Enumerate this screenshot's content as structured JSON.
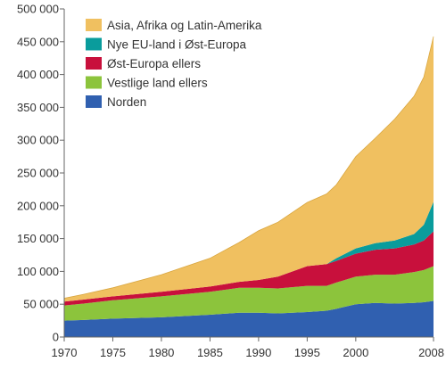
{
  "chart_data": {
    "type": "area",
    "stacked": true,
    "title": "",
    "xlabel": "",
    "ylabel": "",
    "xlim": [
      1970,
      2008
    ],
    "ylim": [
      0,
      500000
    ],
    "grid": false,
    "legend_position": "top-left",
    "x_ticks": [
      1970,
      1975,
      1980,
      1985,
      1990,
      1995,
      2000,
      2008
    ],
    "x_tick_labels": [
      "1970",
      "1975",
      "1980",
      "1985",
      "1990",
      "1995",
      "2000",
      "2008"
    ],
    "y_ticks": [
      0,
      50000,
      100000,
      150000,
      200000,
      250000,
      300000,
      350000,
      400000,
      450000,
      500000
    ],
    "y_tick_labels": [
      "0",
      "50 000",
      "100 000",
      "150 000",
      "200 000",
      "250 000",
      "300 000",
      "350 000",
      "400 000",
      "450 000",
      "500 000"
    ],
    "x": [
      1970,
      1972,
      1975,
      1980,
      1985,
      1988,
      1990,
      1992,
      1995,
      1997,
      1998,
      2000,
      2002,
      2004,
      2006,
      2007,
      2008
    ],
    "series": [
      {
        "name": "Norden",
        "color": "#3060b0",
        "values": [
          25000,
          26000,
          28000,
          30000,
          34000,
          37000,
          37000,
          36000,
          38000,
          40000,
          43000,
          50000,
          52000,
          51000,
          52000,
          53000,
          55000
        ]
      },
      {
        "name": "Vestlige land ellers",
        "color": "#8cc43c",
        "values": [
          23000,
          25000,
          28000,
          32000,
          35000,
          38000,
          38000,
          38000,
          40000,
          38000,
          40000,
          42000,
          43000,
          44000,
          47000,
          49000,
          53000
        ]
      },
      {
        "name": "Øst-Europa ellers",
        "color": "#c8103c",
        "values": [
          6000,
          6000,
          6000,
          7000,
          8000,
          9000,
          12000,
          18000,
          30000,
          33000,
          33000,
          35000,
          38000,
          40000,
          42000,
          45000,
          53000
        ]
      },
      {
        "name": "Nye EU-land i Øst-Europa",
        "color": "#0a9c9c",
        "values": [
          0,
          0,
          0,
          0,
          0,
          0,
          0,
          0,
          0,
          0,
          4000,
          8000,
          10000,
          12000,
          16000,
          24000,
          45000
        ]
      },
      {
        "name": "Asia, Afrika og Latin-Amerika",
        "color": "#f0c060",
        "values": [
          5000,
          8000,
          13000,
          26000,
          43000,
          60000,
          75000,
          83000,
          97000,
          107000,
          112000,
          140000,
          160000,
          185000,
          210000,
          225000,
          252000
        ]
      }
    ]
  }
}
